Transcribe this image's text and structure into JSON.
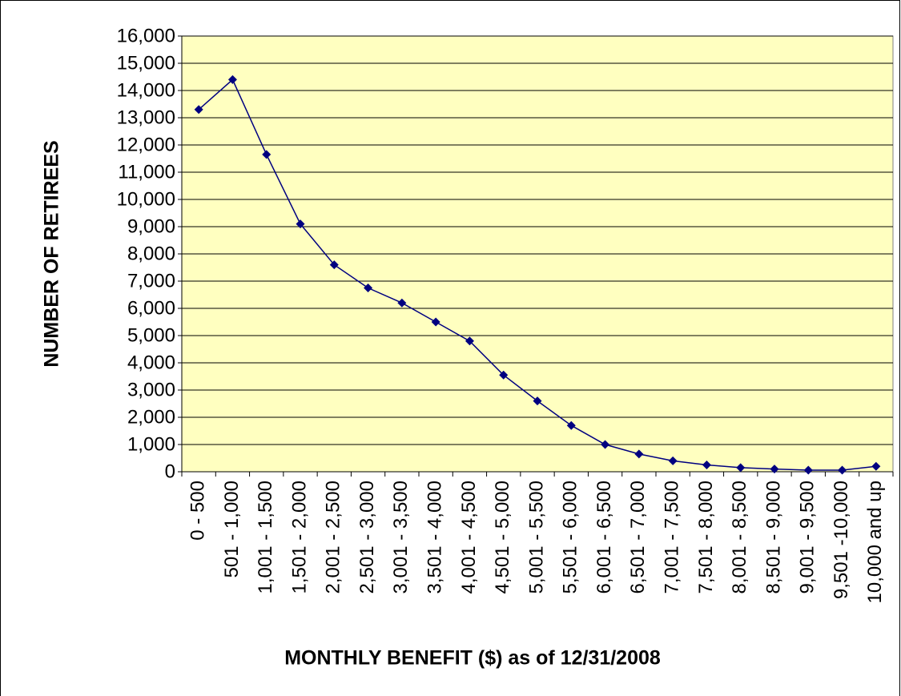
{
  "chart_data": {
    "type": "line",
    "x_label": "MONTHLY BENEFIT ($) as of 12/31/2008",
    "y_label": "NUMBER OF RETIREES",
    "categories": [
      "0 - 500",
      "501 - 1,000",
      "1,001 - 1,500",
      "1,501 - 2,000",
      "2,001 - 2,500",
      "2,501 - 3,000",
      "3,001 - 3,500",
      "3,501 - 4,000",
      "4,001 - 4,500",
      "4,501 - 5,000",
      "5,001 - 5,500",
      "5,501 - 6,000",
      "6,001 - 6,500",
      "6,501 - 7,000",
      "7,001 - 7,500",
      "7,501 - 8,000",
      "8,001 - 8,500",
      "8,501 - 9,000",
      "9,001 - 9,500",
      "9,501 -10,000",
      "10,000 and up"
    ],
    "series": [
      {
        "name": "Retirees",
        "color": "#000080",
        "values": [
          13300,
          14400,
          11650,
          9100,
          7600,
          6750,
          6200,
          5500,
          4800,
          3550,
          2600,
          1700,
          1000,
          650,
          400,
          250,
          150,
          100,
          60,
          60,
          200
        ]
      }
    ],
    "ylim": [
      0,
      16000
    ],
    "yticks": [
      0,
      {
        "value": 1000,
        "label": "1,000"
      },
      {
        "value": 2000,
        "label": "2,000"
      },
      {
        "value": 3000,
        "label": "3,000"
      },
      {
        "value": 4000,
        "label": "4,000"
      },
      {
        "value": 5000,
        "label": "5,000"
      },
      {
        "value": 6000,
        "label": "6,000"
      },
      {
        "value": 7000,
        "label": "7,000"
      },
      {
        "value": 8000,
        "label": "8,000"
      },
      {
        "value": 9000,
        "label": "9,000"
      },
      {
        "value": 10000,
        "label": "10,000"
      },
      {
        "value": 11000,
        "label": "11,000"
      },
      {
        "value": 12000,
        "label": "12,000"
      },
      {
        "value": 13000,
        "label": "13,000"
      },
      {
        "value": 14000,
        "label": "14,000"
      },
      {
        "value": 15000,
        "label": "15,000"
      },
      {
        "value": 16000,
        "label": "16,000"
      }
    ],
    "grid": true,
    "plot_background": "#ffffc0"
  }
}
